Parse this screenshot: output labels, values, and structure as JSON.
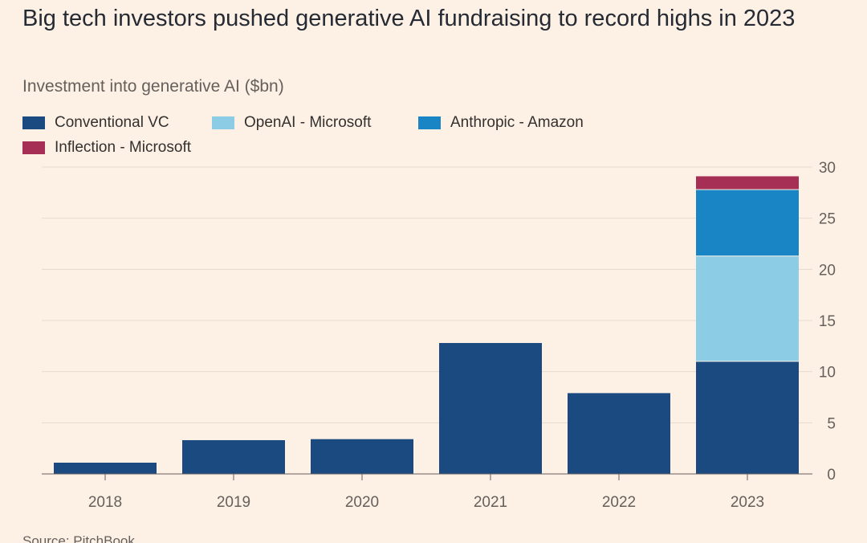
{
  "header": {
    "title": "Big tech investors pushed generative AI fundraising to record highs in 2023",
    "subtitle": "Investment into generative AI ($bn)"
  },
  "footer": {
    "source": "Source: PitchBook"
  },
  "colors": {
    "background": "#fdf1e6",
    "gridline": "#e6d9ce",
    "axis": "#66605c",
    "tick_text": "#66605c"
  },
  "chart_data": {
    "type": "bar",
    "stacked": true,
    "categories": [
      "2018",
      "2019",
      "2020",
      "2021",
      "2022",
      "2023"
    ],
    "series": [
      {
        "name": "Conventional VC",
        "color": "#1a4a7f",
        "values": [
          1.1,
          3.3,
          3.4,
          12.8,
          7.9,
          11.0
        ]
      },
      {
        "name": "OpenAI - Microsoft",
        "color": "#8ccde5",
        "values": [
          0,
          0,
          0,
          0,
          0,
          10.3
        ]
      },
      {
        "name": "Anthropic - Amazon",
        "color": "#1985c4",
        "values": [
          0,
          0,
          0,
          0,
          0,
          6.5
        ]
      },
      {
        "name": "Inflection - Microsoft",
        "color": "#a62f55",
        "values": [
          0,
          0,
          0,
          0,
          0,
          1.3
        ]
      }
    ],
    "ylim": [
      0,
      30
    ],
    "yticks": [
      "0",
      "5",
      "10",
      "15",
      "20",
      "25",
      "30"
    ],
    "grid": true,
    "y_axis_side": "right",
    "legend_placement": "top-left"
  }
}
